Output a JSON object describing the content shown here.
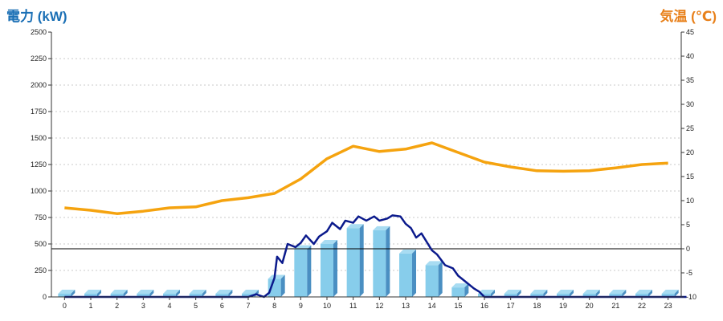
{
  "chart_data": {
    "type": "bar+line",
    "ylabel_left": "電力 (kW)",
    "ylabel_right": "気温 (℃)",
    "ylim_left": [
      0,
      2500
    ],
    "ylim_right": [
      -10,
      45
    ],
    "y_ticks_left": [
      "0",
      "250",
      "500",
      "750",
      "1000",
      "1250",
      "1500",
      "1750",
      "2000",
      "2250",
      "2500"
    ],
    "y_ticks_right": [
      "-10",
      "-5",
      "0",
      "5",
      "10",
      "15",
      "20",
      "25",
      "30",
      "35",
      "40",
      "45"
    ],
    "categories": [
      "0",
      "1",
      "2",
      "3",
      "4",
      "5",
      "6",
      "7",
      "8",
      "9",
      "10",
      "11",
      "12",
      "13",
      "14",
      "15",
      "16",
      "17",
      "18",
      "19",
      "20",
      "21",
      "22",
      "23"
    ],
    "grid": "horizontal dashed",
    "bars": {
      "name": "",
      "color": "#87cdeb",
      "values": [
        0,
        0,
        0,
        0,
        0,
        0,
        0,
        0,
        170,
        450,
        500,
        650,
        630,
        410,
        300,
        90,
        0,
        0,
        0,
        0,
        0,
        0,
        0,
        0
      ]
    },
    "power_line": {
      "name": "",
      "color": "#0b1a8c",
      "points": [
        [
          0,
          0
        ],
        [
          7,
          0
        ],
        [
          7.3,
          25
        ],
        [
          7.6,
          0
        ],
        [
          7.8,
          40
        ],
        [
          8.0,
          180
        ],
        [
          8.1,
          380
        ],
        [
          8.3,
          320
        ],
        [
          8.5,
          500
        ],
        [
          8.8,
          470
        ],
        [
          9.0,
          510
        ],
        [
          9.2,
          580
        ],
        [
          9.5,
          500
        ],
        [
          9.7,
          570
        ],
        [
          10.0,
          620
        ],
        [
          10.2,
          700
        ],
        [
          10.5,
          640
        ],
        [
          10.7,
          720
        ],
        [
          11.0,
          700
        ],
        [
          11.2,
          760
        ],
        [
          11.5,
          720
        ],
        [
          11.8,
          760
        ],
        [
          12.0,
          720
        ],
        [
          12.3,
          740
        ],
        [
          12.5,
          770
        ],
        [
          12.8,
          760
        ],
        [
          13.0,
          690
        ],
        [
          13.2,
          650
        ],
        [
          13.4,
          560
        ],
        [
          13.6,
          600
        ],
        [
          13.8,
          520
        ],
        [
          14.0,
          440
        ],
        [
          14.2,
          400
        ],
        [
          14.5,
          300
        ],
        [
          14.8,
          270
        ],
        [
          15.0,
          200
        ],
        [
          15.3,
          140
        ],
        [
          15.6,
          80
        ],
        [
          15.8,
          50
        ],
        [
          16.0,
          0
        ],
        [
          23.7,
          0
        ]
      ]
    },
    "temperature_line": {
      "name": "",
      "color": "#f5a30f",
      "values": [
        8.5,
        8,
        7.3,
        7.8,
        8.5,
        8.7,
        10,
        10.6,
        11.5,
        14.5,
        18.7,
        21.3,
        20.2,
        20.7,
        22,
        20,
        18,
        17,
        16.2,
        16.1,
        16.2,
        16.8,
        17.5,
        17.8
      ]
    },
    "reference_line": {
      "axis": "right",
      "value": 0,
      "color": "#000000"
    }
  }
}
